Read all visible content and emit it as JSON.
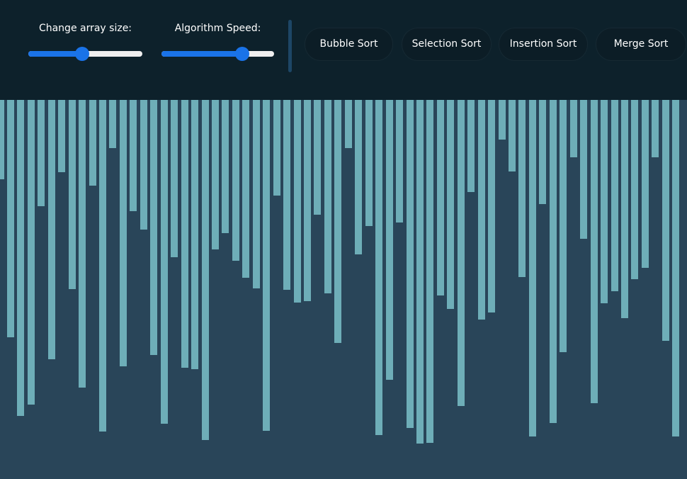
{
  "header": {
    "array_size": {
      "label": "Change array size:",
      "value_fraction": 0.47
    },
    "speed": {
      "label": "Algorithm Speed:",
      "value_fraction": 0.72
    },
    "buttons": [
      {
        "label": "Bubble Sort"
      },
      {
        "label": "Selection Sort"
      },
      {
        "label": "Insertion Sort"
      },
      {
        "label": "Merge Sort"
      }
    ]
  },
  "colors": {
    "header_bg": "#0d212b",
    "canvas_bg": "#294559",
    "bar": "#6eaeb8",
    "slider_accent": "#1a73e8",
    "button_bg": "#0c1d26"
  },
  "array_values": [
    112,
    335,
    446,
    430,
    150,
    366,
    102,
    267,
    406,
    121,
    468,
    68,
    376,
    157,
    183,
    360,
    457,
    222,
    378,
    380,
    480,
    211,
    188,
    227,
    251,
    266,
    467,
    135,
    268,
    286,
    284,
    162,
    273,
    343,
    68,
    218,
    178,
    473,
    395,
    173,
    463,
    485,
    484,
    276,
    295,
    432,
    130,
    310,
    300,
    56,
    101,
    250,
    475,
    147,
    456,
    356,
    81,
    196,
    428,
    287,
    270,
    308,
    253,
    237,
    81,
    340,
    475
  ]
}
